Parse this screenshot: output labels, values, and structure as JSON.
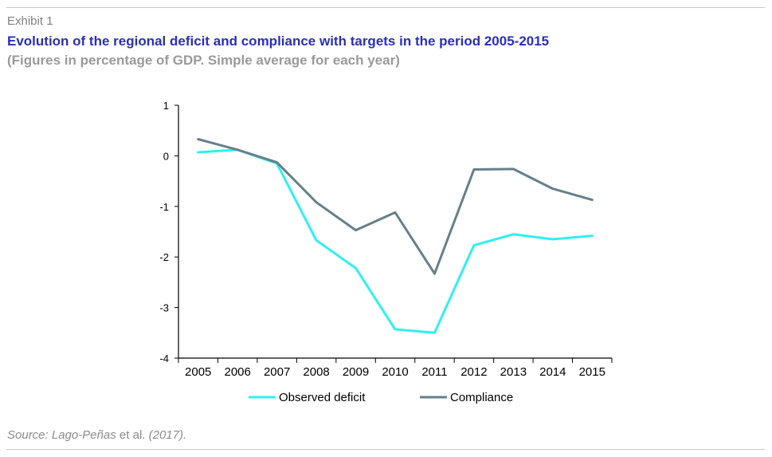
{
  "header": {
    "exhibit": "Exhibit 1",
    "title": "Evolution of the regional deficit and compliance with targets in the period 2005-2015",
    "subtitle": "(Figures in percentage of GDP. Simple average for each year)"
  },
  "footer": {
    "source_part1": "Source: Lago-Peñas",
    "source_part2": " et al. ",
    "source_part3": "(2017)."
  },
  "chart_data": {
    "type": "line",
    "categories": [
      "2005",
      "2006",
      "2007",
      "2008",
      "2009",
      "2010",
      "2011",
      "2012",
      "2013",
      "2014",
      "2015"
    ],
    "series": [
      {
        "name": "Observed deficit",
        "color": "#2ff0f0",
        "values": [
          0.07,
          0.12,
          -0.15,
          -1.67,
          -2.22,
          -3.43,
          -3.5,
          -1.77,
          -1.55,
          -1.65,
          -1.58
        ]
      },
      {
        "name": "Compliance",
        "color": "#66808a",
        "values": [
          0.33,
          0.12,
          -0.13,
          -0.92,
          -1.47,
          -1.12,
          -2.33,
          -0.27,
          -0.26,
          -0.65,
          -0.87
        ]
      }
    ],
    "yticks": [
      "1",
      "0",
      "-1",
      "-2",
      "-3",
      "-4"
    ],
    "ylim": [
      -4,
      1
    ],
    "grid": false,
    "legend_position": "bottom"
  }
}
